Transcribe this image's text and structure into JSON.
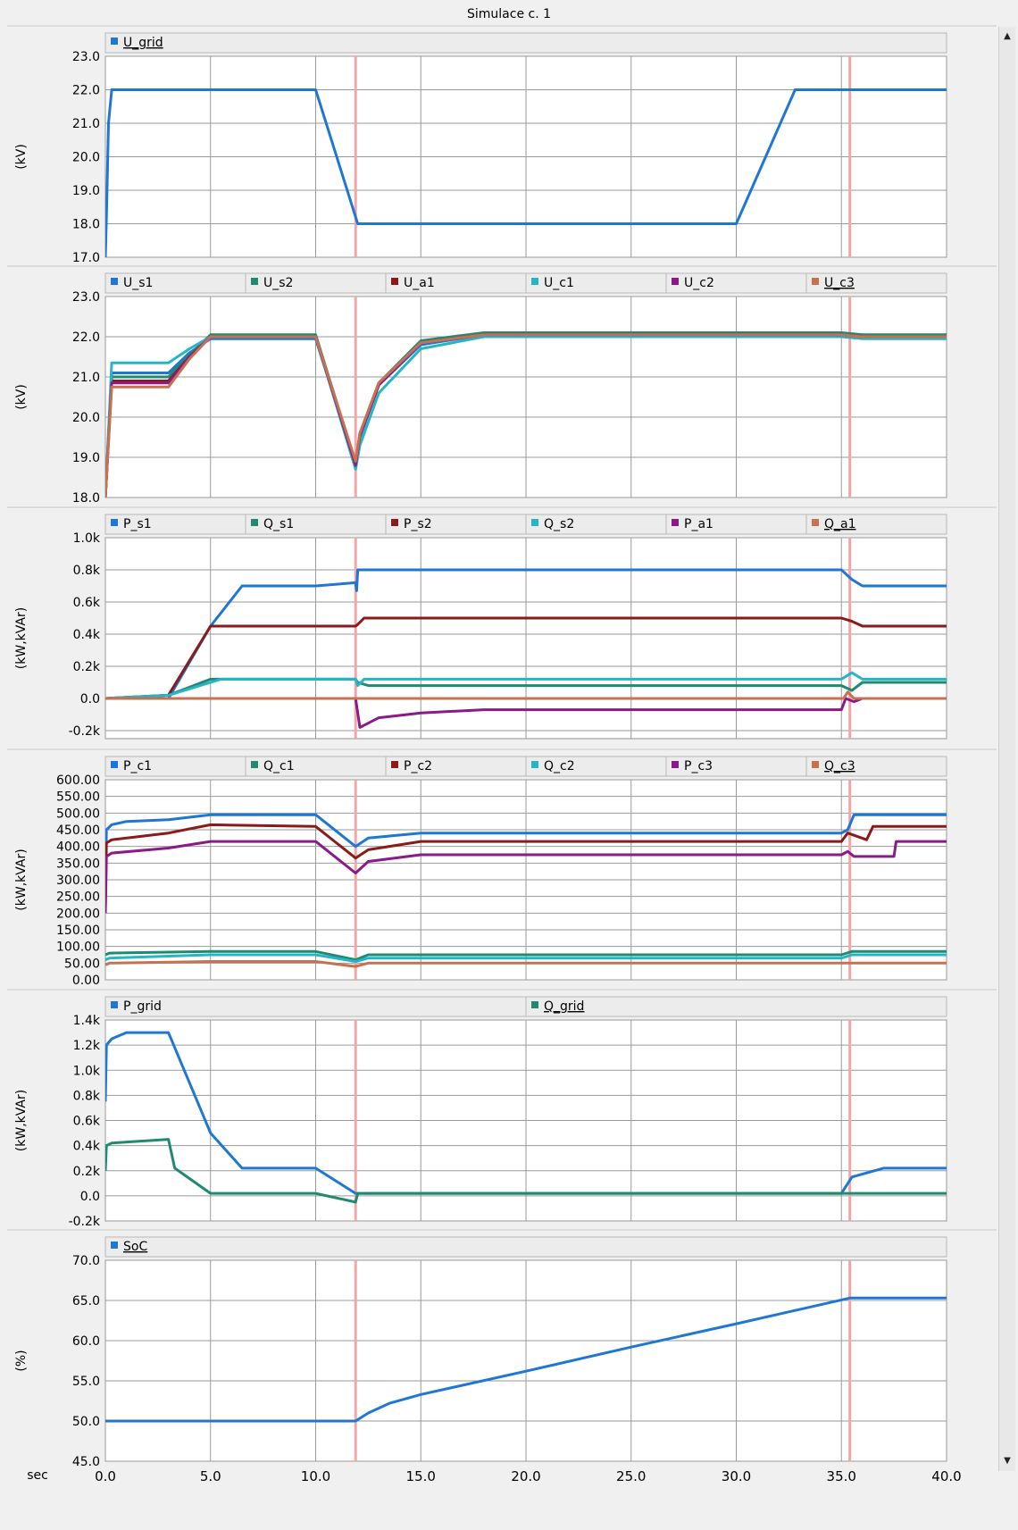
{
  "window_title": "Simulace c. 1",
  "scrollbar": {
    "up_icon": "triangle-up-icon",
    "down_icon": "triangle-down-icon"
  },
  "axis_label": "sec",
  "colors": {
    "blue": "#1f77d4",
    "teal": "#1f8a70",
    "darkred": "#8b1a1a",
    "cyan": "#25b5c4",
    "purple": "#8a1a8a",
    "salmon": "#c87050",
    "marker": "#f4a6a6"
  },
  "markers": [
    11.9,
    35.4
  ],
  "chart_data": [
    {
      "type": "line",
      "ylabel": "(kV)",
      "ylim": [
        17,
        23
      ],
      "yticks": [
        "17.0",
        "18.0",
        "19.0",
        "20.0",
        "21.0",
        "22.0",
        "23.0"
      ],
      "xlim": [
        0,
        40
      ],
      "xticks": [
        "0.0",
        "5.0",
        "10.0",
        "15.0",
        "20.0",
        "25.0",
        "30.0",
        "35.0",
        "40.0"
      ],
      "legend": [
        "U_grid"
      ],
      "series": [
        {
          "name": "U_grid",
          "color": "#1f77d4",
          "x": [
            0,
            0.05,
            0.15,
            0.3,
            10,
            12,
            30,
            32.8,
            40
          ],
          "y": [
            17,
            18.2,
            21,
            22,
            22,
            18,
            18,
            22,
            22
          ]
        }
      ]
    },
    {
      "type": "line",
      "ylabel": "(kV)",
      "ylim": [
        18,
        23
      ],
      "yticks": [
        "18.0",
        "19.0",
        "20.0",
        "21.0",
        "22.0",
        "23.0"
      ],
      "xlim": [
        0,
        40
      ],
      "xticks": [
        "0.0",
        "5.0",
        "10.0",
        "15.0",
        "20.0",
        "25.0",
        "30.0",
        "35.0",
        "40.0"
      ],
      "legend": [
        "U_s1",
        "U_s2",
        "U_a1",
        "U_c1",
        "U_c2",
        "U_c3"
      ],
      "series": [
        {
          "name": "U_s1",
          "color": "#1f77d4",
          "x": [
            0,
            0.3,
            3,
            4,
            5,
            10,
            11.9,
            12.1,
            13,
            15,
            18,
            35,
            36,
            40
          ],
          "y": [
            18,
            21.1,
            21.1,
            21.6,
            21.95,
            21.95,
            18.8,
            19.5,
            20.8,
            21.8,
            22.05,
            22.05,
            22,
            22
          ]
        },
        {
          "name": "U_s2",
          "color": "#1f8a70",
          "x": [
            0,
            0.3,
            3,
            4,
            5,
            10,
            11.9,
            12.1,
            13,
            15,
            18,
            35,
            36,
            40
          ],
          "y": [
            18,
            21,
            21,
            21.55,
            22.05,
            22.05,
            18.85,
            19.6,
            20.85,
            21.9,
            22.1,
            22.1,
            22.05,
            22.05
          ]
        },
        {
          "name": "U_a1",
          "color": "#8b1a1a",
          "x": [
            0,
            0.3,
            3,
            4,
            5,
            10,
            11.9,
            12.1,
            13,
            15,
            18,
            35,
            36,
            40
          ],
          "y": [
            18,
            20.9,
            20.9,
            21.5,
            22,
            22,
            18.8,
            19.55,
            20.8,
            21.85,
            22.05,
            22.05,
            22,
            22
          ]
        },
        {
          "name": "U_c1",
          "color": "#25b5c4",
          "x": [
            0,
            0.3,
            3,
            4,
            5,
            10,
            11.9,
            12.1,
            13,
            15,
            18,
            35,
            36,
            40
          ],
          "y": [
            18,
            21.35,
            21.35,
            21.7,
            22,
            22,
            18.7,
            19.3,
            20.6,
            21.7,
            22,
            22,
            21.95,
            21.95
          ]
        },
        {
          "name": "U_c2",
          "color": "#8a1a8a",
          "x": [
            0,
            0.3,
            3,
            4,
            5,
            10,
            11.9,
            12.1,
            13,
            15,
            18,
            35,
            36,
            40
          ],
          "y": [
            18,
            20.85,
            20.85,
            21.5,
            22,
            22,
            18.8,
            19.55,
            20.8,
            21.85,
            22.05,
            22.05,
            22,
            22
          ]
        },
        {
          "name": "U_c3",
          "color": "#c87050",
          "x": [
            0,
            0.3,
            3,
            4,
            5,
            10,
            11.9,
            12.1,
            13,
            15,
            18,
            35,
            36,
            40
          ],
          "y": [
            18,
            20.75,
            20.75,
            21.45,
            22,
            22,
            18.9,
            19.6,
            20.85,
            21.85,
            22.05,
            22.05,
            22,
            22
          ]
        }
      ]
    },
    {
      "type": "line",
      "ylabel": "(kW,kVAr)",
      "ylim": [
        -0.25,
        1.0
      ],
      "yticks": [
        "-0.2k",
        "0.0",
        "0.2k",
        "0.4k",
        "0.6k",
        "0.8k",
        "1.0k"
      ],
      "ytick_values": [
        -0.2,
        0,
        0.2,
        0.4,
        0.6,
        0.8,
        1.0
      ],
      "xlim": [
        0,
        40
      ],
      "xticks": [
        "0.0",
        "5.0",
        "10.0",
        "15.0",
        "20.0",
        "25.0",
        "30.0",
        "35.0",
        "40.0"
      ],
      "legend": [
        "P_s1",
        "Q_s1",
        "P_s2",
        "Q_s2",
        "P_a1",
        "Q_a1"
      ],
      "series": [
        {
          "name": "P_s1",
          "color": "#1f77d4",
          "x": [
            0,
            3,
            5,
            6.5,
            10,
            11.9,
            11.95,
            12,
            35,
            35.5,
            36,
            40
          ],
          "y": [
            0,
            0,
            0.45,
            0.7,
            0.7,
            0.72,
            0.67,
            0.8,
            0.8,
            0.74,
            0.7,
            0.7
          ]
        },
        {
          "name": "Q_s1",
          "color": "#1f8a70",
          "x": [
            0,
            3,
            5,
            11.9,
            12,
            12.5,
            35,
            35.5,
            36,
            40
          ],
          "y": [
            0,
            0.02,
            0.12,
            0.12,
            0.1,
            0.08,
            0.08,
            0.05,
            0.1,
            0.1
          ]
        },
        {
          "name": "P_s2",
          "color": "#8b1a1a",
          "x": [
            0,
            3,
            5,
            11.9,
            12,
            12.3,
            35,
            35.5,
            36,
            40
          ],
          "y": [
            0,
            0.02,
            0.45,
            0.45,
            0.46,
            0.5,
            0.5,
            0.48,
            0.45,
            0.45
          ]
        },
        {
          "name": "Q_s2",
          "color": "#25b5c4",
          "x": [
            0,
            3,
            5.5,
            11.9,
            12,
            12.3,
            35,
            35.5,
            36,
            40
          ],
          "y": [
            0,
            0.02,
            0.12,
            0.12,
            0.08,
            0.12,
            0.12,
            0.16,
            0.12,
            0.12
          ]
        },
        {
          "name": "P_a1",
          "color": "#8a1a8a",
          "x": [
            0,
            11.9,
            12.1,
            13,
            15,
            18,
            35,
            35.2,
            35.6,
            36,
            40
          ],
          "y": [
            0,
            0,
            -0.18,
            -0.12,
            -0.09,
            -0.07,
            -0.07,
            0,
            -0.02,
            0,
            0
          ]
        },
        {
          "name": "Q_a1",
          "color": "#c87050",
          "x": [
            0,
            35.1,
            35.3,
            35.6,
            40
          ],
          "y": [
            0,
            0,
            0.04,
            0,
            0
          ]
        }
      ]
    },
    {
      "type": "line",
      "ylabel": "(kW,kVAr)",
      "ylim": [
        0,
        600
      ],
      "yticks": [
        "0.00",
        "50.00",
        "100.00",
        "150.00",
        "200.00",
        "250.00",
        "300.00",
        "350.00",
        "400.00",
        "450.00",
        "500.00",
        "550.00",
        "600.00"
      ],
      "ytick_values": [
        0,
        50,
        100,
        150,
        200,
        250,
        300,
        350,
        400,
        450,
        500,
        550,
        600
      ],
      "xlim": [
        0,
        40
      ],
      "xticks": [
        "0.0",
        "5.0",
        "10.0",
        "15.0",
        "20.0",
        "25.0",
        "30.0",
        "35.0",
        "40.0"
      ],
      "legend": [
        "P_c1",
        "Q_c1",
        "P_c2",
        "Q_c2",
        "P_c3",
        "Q_c3"
      ],
      "series": [
        {
          "name": "P_c1",
          "color": "#1f77d4",
          "x": [
            0,
            0.05,
            0.3,
            1,
            3,
            5,
            10,
            11.9,
            12.5,
            15,
            35,
            35.3,
            35.6,
            40
          ],
          "y": [
            250,
            450,
            465,
            475,
            480,
            495,
            495,
            400,
            425,
            440,
            440,
            450,
            495,
            495
          ]
        },
        {
          "name": "Q_c1",
          "color": "#1f8a70",
          "x": [
            0,
            0.2,
            5,
            10,
            11.9,
            12.5,
            35,
            35.5,
            40
          ],
          "y": [
            75,
            80,
            85,
            85,
            60,
            75,
            75,
            85,
            85
          ]
        },
        {
          "name": "P_c2",
          "color": "#8b1a1a",
          "x": [
            0,
            0.05,
            0.3,
            3,
            5,
            10,
            11.9,
            12.5,
            15,
            35,
            35.3,
            36.2,
            36.5,
            40
          ],
          "y": [
            220,
            410,
            420,
            440,
            465,
            460,
            365,
            390,
            415,
            415,
            440,
            420,
            460,
            460
          ]
        },
        {
          "name": "Q_c2",
          "color": "#25b5c4",
          "x": [
            0,
            0.2,
            5,
            10,
            11.9,
            12.5,
            35,
            35.5,
            40
          ],
          "y": [
            60,
            65,
            75,
            75,
            55,
            65,
            65,
            75,
            75
          ]
        },
        {
          "name": "P_c3",
          "color": "#8a1a8a",
          "x": [
            0,
            0.05,
            0.3,
            3,
            5,
            10,
            11.9,
            12.5,
            15,
            35,
            35.3,
            35.6,
            37.5,
            37.6,
            40
          ],
          "y": [
            200,
            370,
            380,
            395,
            415,
            415,
            320,
            355,
            375,
            375,
            385,
            370,
            370,
            415,
            415
          ]
        },
        {
          "name": "Q_c3",
          "color": "#c87050",
          "x": [
            0,
            0.2,
            5,
            10,
            11.9,
            12.5,
            40
          ],
          "y": [
            45,
            50,
            55,
            55,
            40,
            50,
            50
          ]
        }
      ]
    },
    {
      "type": "line",
      "ylabel": "(kW,kVAr)",
      "ylim": [
        -0.2,
        1.4
      ],
      "yticks": [
        "-0.2k",
        "0.0",
        "0.2k",
        "0.4k",
        "0.6k",
        "0.8k",
        "1.0k",
        "1.2k",
        "1.4k"
      ],
      "ytick_values": [
        -0.2,
        0,
        0.2,
        0.4,
        0.6,
        0.8,
        1.0,
        1.2,
        1.4
      ],
      "xlim": [
        0,
        40
      ],
      "xticks": [
        "0.0",
        "5.0",
        "10.0",
        "15.0",
        "20.0",
        "25.0",
        "30.0",
        "35.0",
        "40.0"
      ],
      "legend": [
        "P_grid",
        "Q_grid"
      ],
      "series": [
        {
          "name": "P_grid",
          "color": "#1f77d4",
          "x": [
            0,
            0.05,
            0.3,
            1,
            3,
            5,
            6.5,
            10,
            11.9,
            35,
            35.5,
            37,
            40
          ],
          "y": [
            0.75,
            1.2,
            1.25,
            1.3,
            1.3,
            0.5,
            0.22,
            0.22,
            0.02,
            0.02,
            0.15,
            0.22,
            0.22
          ]
        },
        {
          "name": "Q_grid",
          "color": "#1f8a70",
          "x": [
            0,
            0.05,
            0.3,
            3,
            3.3,
            5,
            10,
            11.9,
            12,
            35,
            35.5,
            40
          ],
          "y": [
            0.2,
            0.4,
            0.42,
            0.45,
            0.22,
            0.02,
            0.02,
            -0.05,
            0.02,
            0.02,
            0.02,
            0.02
          ]
        }
      ]
    },
    {
      "type": "line",
      "ylabel": "(%)",
      "ylim": [
        45,
        70
      ],
      "yticks": [
        "45.0",
        "50.0",
        "55.0",
        "60.0",
        "65.0",
        "70.0"
      ],
      "xlim": [
        0,
        40
      ],
      "xticks": [
        "0.0",
        "5.0",
        "10.0",
        "15.0",
        "20.0",
        "25.0",
        "30.0",
        "35.0",
        "40.0"
      ],
      "legend": [
        "SoC"
      ],
      "series": [
        {
          "name": "SoC",
          "color": "#1f77d4",
          "x": [
            0,
            11.9,
            12.5,
            13.5,
            15,
            20,
            25,
            30,
            35.4,
            40
          ],
          "y": [
            50,
            50,
            51,
            52.2,
            53.3,
            56.2,
            59.2,
            62.1,
            65.3,
            65.3
          ]
        }
      ]
    }
  ]
}
